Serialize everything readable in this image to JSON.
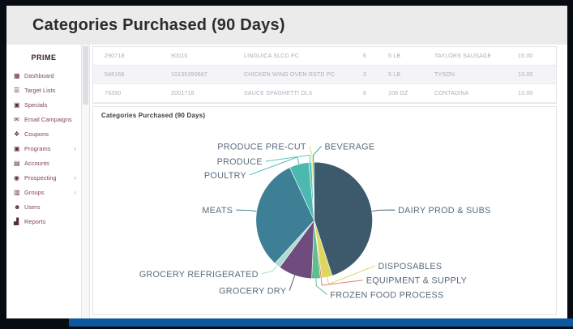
{
  "window": {
    "title": "Categories Purchased (90 Days)"
  },
  "sidebar": {
    "brand": "PRIME",
    "chevron": "›",
    "items": [
      {
        "label": "Dashboard",
        "icon": "dashboard-icon",
        "glyph": "▦",
        "expandable": false
      },
      {
        "label": "Target Lists",
        "icon": "list-icon",
        "glyph": "☰",
        "expandable": false
      },
      {
        "label": "Specials",
        "icon": "briefcase-icon",
        "glyph": "▣",
        "expandable": false
      },
      {
        "label": "Email Campaigns",
        "icon": "envelope-icon",
        "glyph": "✉",
        "expandable": false
      },
      {
        "label": "Coupons",
        "icon": "coupon-icon",
        "glyph": "❖",
        "expandable": false
      },
      {
        "label": "Programs",
        "icon": "programs-icon",
        "glyph": "▣",
        "expandable": true
      },
      {
        "label": "Accounts",
        "icon": "accounts-icon",
        "glyph": "▤",
        "expandable": false
      },
      {
        "label": "Prospecting",
        "icon": "pin-icon",
        "glyph": "◉",
        "expandable": true
      },
      {
        "label": "Groups",
        "icon": "groups-icon",
        "glyph": "▥",
        "expandable": true
      },
      {
        "label": "Users",
        "icon": "users-icon",
        "glyph": "☻",
        "expandable": false
      },
      {
        "label": "Reports",
        "icon": "bar-chart-icon",
        "glyph": "▟",
        "expandable": false
      }
    ]
  },
  "table": {
    "rows": [
      [
        "290718",
        "90010",
        "LINGUICA SLCD PC",
        "6",
        "5 LB",
        "TAYLORS SAUSAGE",
        "15.00"
      ],
      [
        "548166",
        "10135390687",
        "CHICKEN WING OVEN RSTD PC",
        "3",
        "5 LB",
        "TYSON",
        "13.00"
      ],
      [
        "76390",
        "2001718",
        "SAUCE SPAGHETTI DLX",
        "6",
        "106 OZ",
        "CONTADINA",
        "13.00"
      ]
    ]
  },
  "chart": {
    "section_title": "Categories Purchased (90 Days)"
  },
  "chart_data": {
    "type": "pie",
    "title": "Categories Purchased (90 Days)",
    "unit": "percent_of_purchases",
    "direction": "clockwise",
    "start_angle_deg": 0,
    "label_color": "#5b6b7a",
    "series": [
      {
        "name": "DAIRY PROD & SUBS",
        "value": 45.0,
        "color": "#3d5a6c"
      },
      {
        "name": "DISPOSABLES",
        "value": 2.9,
        "color": "#ddd75f"
      },
      {
        "name": "EQUIPMENT & SUPPLY",
        "value": 0.4,
        "color": "#d98177"
      },
      {
        "name": "FROZEN FOOD PROCESS",
        "value": 2.4,
        "color": "#5fbe8d"
      },
      {
        "name": "GROCERY DRY",
        "value": 9.4,
        "color": "#6f4b7e"
      },
      {
        "name": "GROCERY REFRIGERATED",
        "value": 1.7,
        "color": "#aedcd4"
      },
      {
        "name": "MEATS",
        "value": 31.3,
        "color": "#3d7f94"
      },
      {
        "name": "POULTRY",
        "value": 5.4,
        "color": "#4cb9b0"
      },
      {
        "name": "PRODUCE",
        "value": 0.8,
        "color": "#5ec4bb"
      },
      {
        "name": "PRODUCE PRE-CUT",
        "value": 0.3,
        "color": "#e3dd6d"
      },
      {
        "name": "BEVERAGE",
        "value": 0.4,
        "color": "#35a79e"
      }
    ]
  }
}
